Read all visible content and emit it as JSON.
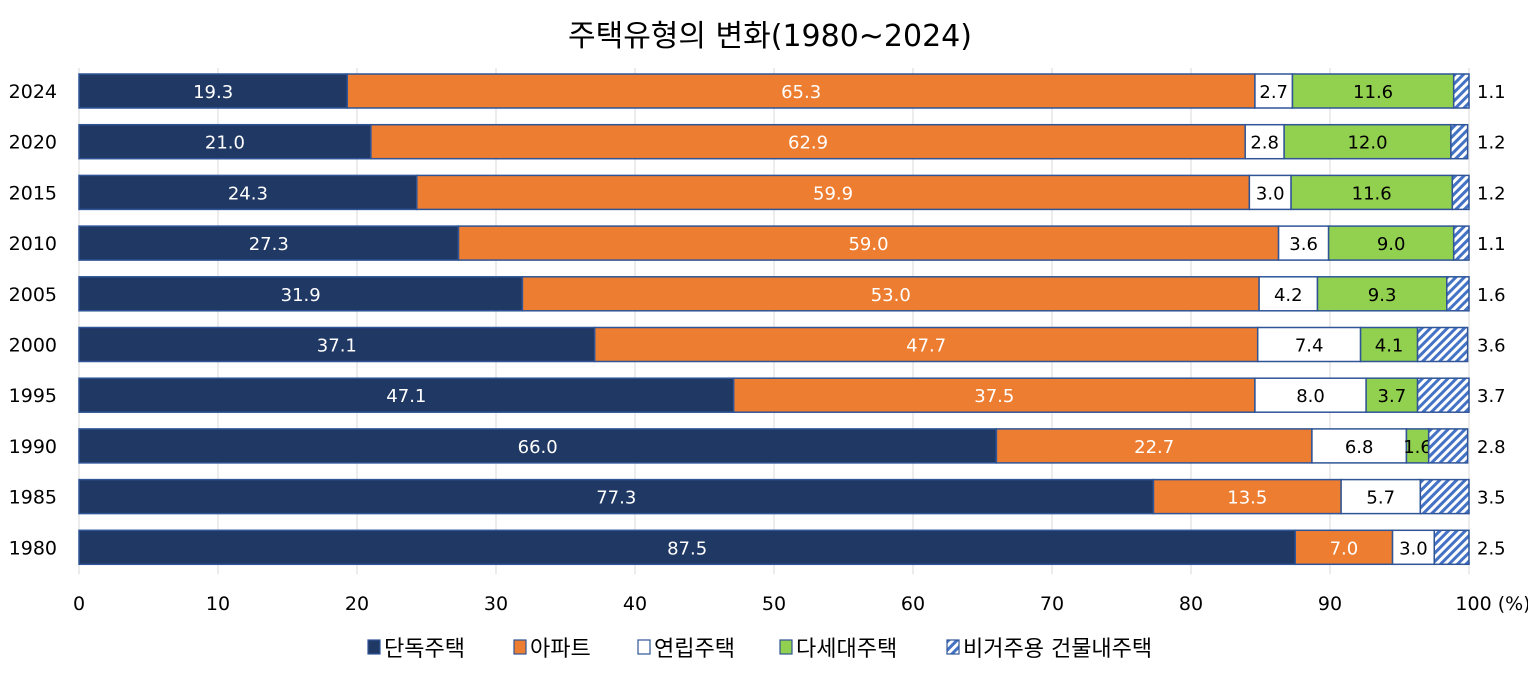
{
  "chart_data": {
    "type": "bar",
    "orientation": "horizontal",
    "stacked": true,
    "title": "주택유형의 변화(1980~2024)",
    "xlabel": "",
    "x_unit": "(%)",
    "xlim": [
      0,
      100
    ],
    "xticks": [
      0,
      10,
      20,
      30,
      40,
      50,
      60,
      70,
      80,
      90,
      100
    ],
    "grid": "vertical",
    "legend_position": "bottom",
    "categories": [
      "2024",
      "2020",
      "2015",
      "2010",
      "2005",
      "2000",
      "1995",
      "1990",
      "1985",
      "1980"
    ],
    "series": [
      {
        "name": "단독주택",
        "color": "#203864",
        "label_color": "#ffffff",
        "pattern": "solid",
        "values": [
          19.3,
          21.0,
          24.3,
          27.3,
          31.9,
          37.1,
          47.1,
          66.0,
          77.3,
          87.5
        ]
      },
      {
        "name": "아파트",
        "color": "#ED7D31",
        "label_color": "#ffffff",
        "pattern": "solid",
        "values": [
          65.3,
          62.9,
          59.9,
          59.0,
          53.0,
          47.7,
          37.5,
          22.7,
          13.5,
          7.0
        ]
      },
      {
        "name": "연립주택",
        "color": "#ffffff",
        "label_color": "#000000",
        "pattern": "solid",
        "values": [
          2.7,
          2.8,
          3.0,
          3.6,
          4.2,
          7.4,
          8.0,
          6.8,
          5.7,
          3.0
        ]
      },
      {
        "name": "다세대주택",
        "color": "#92D050",
        "label_color": "#000000",
        "pattern": "solid",
        "values": [
          11.6,
          12.0,
          11.6,
          9.0,
          9.3,
          4.1,
          3.7,
          1.6,
          0,
          0
        ]
      },
      {
        "name": "비거주용 건물내주택",
        "color": "#4472C4",
        "label_color": "#000000",
        "pattern": "diagonal-hatch",
        "values": [
          1.1,
          1.2,
          1.2,
          1.1,
          1.6,
          3.6,
          3.7,
          2.8,
          3.5,
          2.5
        ]
      }
    ],
    "outline_color": "#2F5597"
  }
}
